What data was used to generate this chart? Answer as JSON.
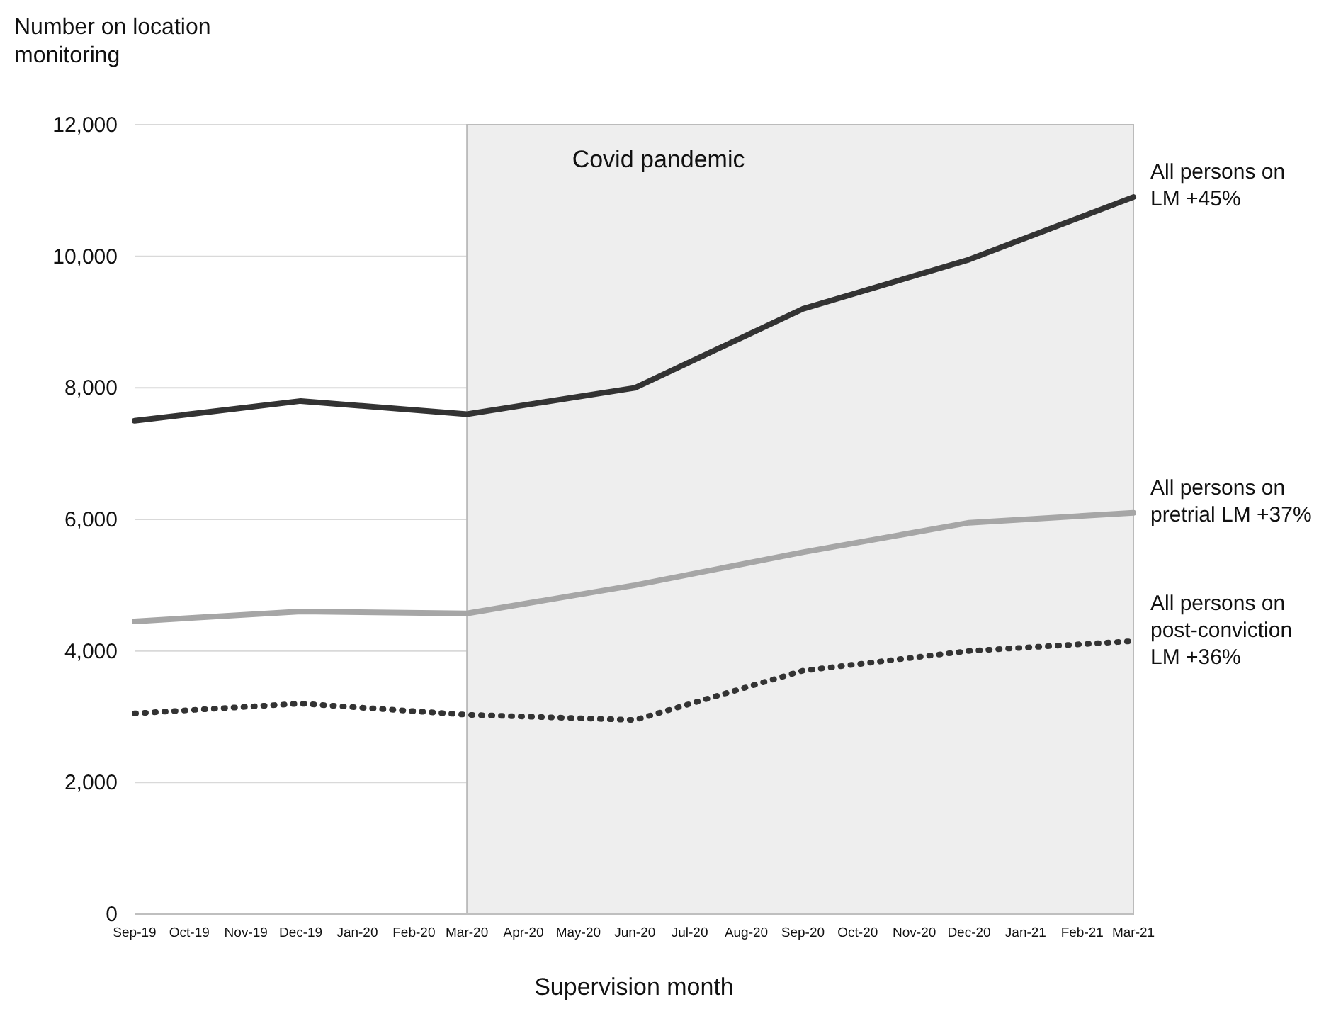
{
  "chart_data": {
    "type": "line",
    "ylabel": "Number on location monitoring",
    "xlabel": "Supervision month",
    "xlim": [
      "2019-09",
      "2021-03"
    ],
    "xticks": [
      {
        "value": "2019-09",
        "label": "Sep-19"
      },
      {
        "value": "2019-10",
        "label": "Oct-19"
      },
      {
        "value": "2019-11",
        "label": "Nov-19"
      },
      {
        "value": "2019-12",
        "label": "Dec-19"
      },
      {
        "value": "2020-01",
        "label": "Jan-20"
      },
      {
        "value": "2020-02",
        "label": "Feb-20"
      },
      {
        "value": "2020-03",
        "label": "Mar-20"
      },
      {
        "value": "2020-04",
        "label": "Apr-20"
      },
      {
        "value": "2020-05",
        "label": "May-20"
      },
      {
        "value": "2020-06",
        "label": "Jun-20"
      },
      {
        "value": "2020-07",
        "label": "Jul-20"
      },
      {
        "value": "2020-08",
        "label": "Aug-20"
      },
      {
        "value": "2020-09",
        "label": "Sep-20"
      },
      {
        "value": "2020-10",
        "label": "Oct-20"
      },
      {
        "value": "2020-11",
        "label": "Nov-20"
      },
      {
        "value": "2020-12",
        "label": "Dec-20"
      },
      {
        "value": "2021-01",
        "label": "Jan-21"
      },
      {
        "value": "2021-02",
        "label": "Feb-21"
      },
      {
        "value": "2021-03",
        "label": "Mar-21"
      }
    ],
    "ylim": [
      0,
      12000
    ],
    "yticks": [
      {
        "value": 0,
        "label": "0"
      },
      {
        "value": 2000,
        "label": "2,000"
      },
      {
        "value": 4000,
        "label": "4,000"
      },
      {
        "value": 6000,
        "label": "6,000"
      },
      {
        "value": 8000,
        "label": "8,000"
      },
      {
        "value": 10000,
        "label": "10,000"
      },
      {
        "value": 12000,
        "label": "12,000"
      }
    ],
    "grid": "y",
    "marker": "none",
    "x": [
      "2019-09",
      "2019-12",
      "2020-03",
      "2020-06",
      "2020-09",
      "2020-12",
      "2021-03"
    ],
    "bands": [
      {
        "axis": "x",
        "from": "2020-03",
        "to": "2021-03",
        "label": "Covid pandemic",
        "color": "#eeeeee"
      }
    ],
    "series": [
      {
        "name": "All persons on LM +45%",
        "color": "#333333",
        "line_style": "solid",
        "values": [
          7500,
          7800,
          7600,
          8000,
          9200,
          9950,
          10900
        ]
      },
      {
        "name": "All persons on pretrial LM +37%",
        "color": "#a6a6a6",
        "line_style": "solid",
        "values": [
          4450,
          4600,
          4570,
          5000,
          5500,
          5950,
          6100
        ]
      },
      {
        "name": "All persons on post-conviction LM +36%",
        "color": "#333333",
        "line_style": "dotted",
        "values": [
          3050,
          3200,
          3030,
          2950,
          3700,
          4000,
          4150
        ]
      }
    ]
  }
}
